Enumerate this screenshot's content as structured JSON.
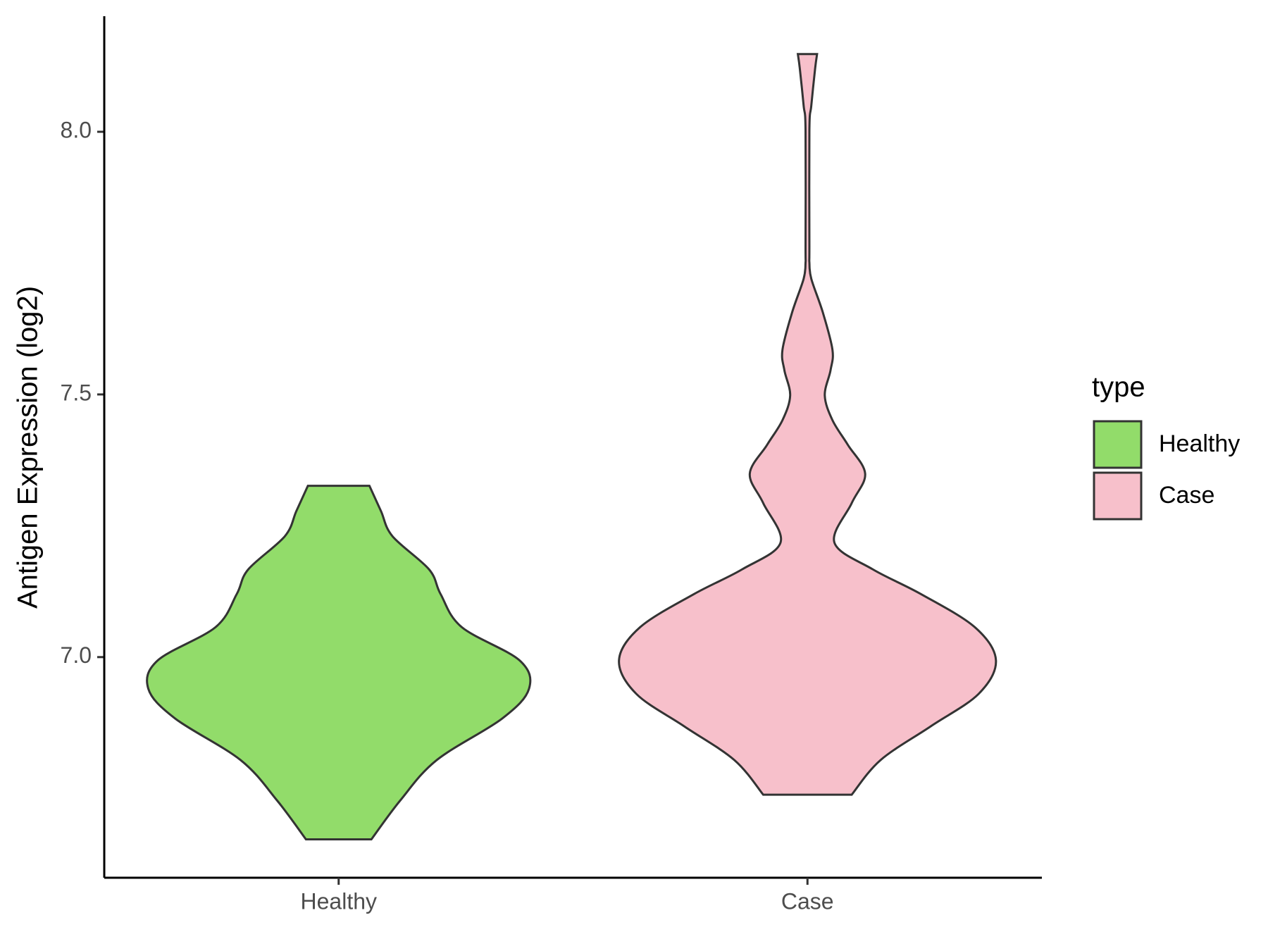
{
  "chart_data": {
    "type": "violin",
    "y_label": "Antigen Expression (log2)",
    "categories": [
      "Healthy",
      "Case"
    ],
    "legend_title": "type",
    "legend_position": "right",
    "ylim": [
      6.58,
      8.22
    ],
    "yticks": [
      {
        "value": 7,
        "label": "7.0"
      },
      7.5,
      {
        "value": 8,
        "label": "8.0"
      }
    ],
    "series": [
      {
        "name": "Healthy",
        "color": "#92dc6a",
        "y": [
          7.326,
          7.278,
          7.23,
          7.167,
          7.12,
          7.057,
          6.994,
          6.94,
          6.883,
          6.804,
          6.727,
          6.653
        ],
        "density": [
          0.16,
          0.22,
          0.28,
          0.47,
          0.53,
          0.64,
          0.94,
          0.99,
          0.85,
          0.51,
          0.32,
          0.17
        ]
      },
      {
        "name": "Case",
        "color": "#f7c0cb",
        "y": [
          8.148,
          8.121,
          8.05,
          8.003,
          7.782,
          7.751,
          7.72,
          7.656,
          7.585,
          7.546,
          7.498,
          7.451,
          7.404,
          7.349,
          7.293,
          7.218,
          7.167,
          7.12,
          7.057,
          6.994,
          6.93,
          6.868,
          6.804,
          6.738
        ],
        "density": [
          0.05,
          0.04,
          0.02,
          0.01,
          0.01,
          0.01,
          0.02,
          0.08,
          0.13,
          0.12,
          0.09,
          0.13,
          0.21,
          0.3,
          0.23,
          0.14,
          0.34,
          0.59,
          0.87,
          0.98,
          0.89,
          0.64,
          0.38,
          0.23
        ]
      }
    ]
  }
}
